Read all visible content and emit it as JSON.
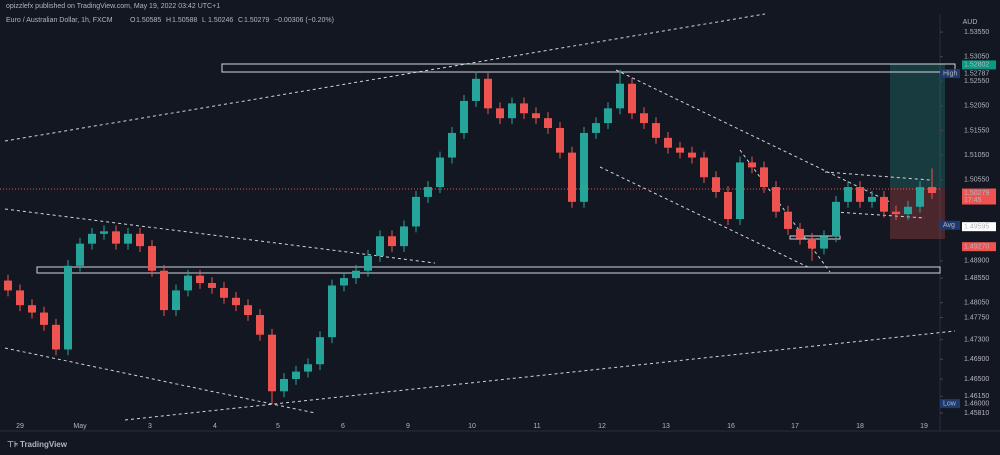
{
  "header": {
    "publisher": "opizzlefx published on TradingView.com, May 19, 2022 03:42 UTC+1",
    "brand": "TradingView"
  },
  "chart_data": {
    "type": "candlestick",
    "title": "Euro / Australian Dollar, 1h, FXCM",
    "readout": [
      {
        "key": "O",
        "value": 1.50585
      },
      {
        "key": "H",
        "value": 1.50588
      },
      {
        "key": "L",
        "value": 1.50246
      },
      {
        "key": "C",
        "value": 1.50279
      }
    ],
    "change": "−0.00306 (−0.20%)",
    "currency": "AUD",
    "up_color": "#26a69a",
    "down_color": "#ef5350",
    "ylim": [
      1.45443,
      1.53917
    ],
    "yticks": [
      {
        "value": 1.5355,
        "label": "1.53550"
      },
      {
        "value": 1.5305,
        "label": "1.53050"
      },
      {
        "value": 1.5255,
        "label": "1.52550"
      },
      {
        "value": 1.5205,
        "label": "1.52050"
      },
      {
        "value": 1.5155,
        "label": "1.51550"
      },
      {
        "value": 1.5105,
        "label": "1.51050"
      },
      {
        "value": 1.5055,
        "label": "1.50550"
      },
      {
        "value": 1.489,
        "label": "1.48900"
      },
      {
        "value": 1.4855,
        "label": "1.48550"
      },
      {
        "value": 1.4805,
        "label": "1.48050"
      },
      {
        "value": 1.4775,
        "label": "1.47750"
      },
      {
        "value": 1.473,
        "label": "1.47300"
      },
      {
        "value": 1.469,
        "label": "1.46900"
      },
      {
        "value": 1.465,
        "label": "1.46500"
      },
      {
        "value": 1.4615,
        "label": "1.46150"
      },
      {
        "value": 1.4581,
        "label": "1.45810"
      }
    ],
    "price_markers": [
      {
        "tag": "High",
        "value": 1.52787
      },
      {
        "value": 1.52802
      },
      {
        "value": 1.50279,
        "sub": "17:45"
      },
      {
        "tag": "Avg",
        "value": 1.49624
      },
      {
        "value": 1.49595
      },
      {
        "value": 1.4927,
        "label": "1.49270"
      },
      {
        "tag": "Low",
        "value": 1.46,
        "label": "1.46000"
      }
    ],
    "time_labels": [
      "29",
      "May",
      "3",
      "4",
      "5",
      "6",
      "9",
      "10",
      "11",
      "12",
      "13",
      "16",
      "17",
      "18",
      "19"
    ],
    "ohlc": [
      [
        1.485,
        1.4862,
        1.4818,
        1.483
      ],
      [
        1.483,
        1.4842,
        1.4788,
        1.48
      ],
      [
        1.48,
        1.4812,
        1.4773,
        1.4785
      ],
      [
        1.4785,
        1.4797,
        1.4748,
        1.476
      ],
      [
        1.476,
        1.4772,
        1.4698,
        1.471
      ],
      [
        1.471,
        1.4892,
        1.4698,
        1.488
      ],
      [
        1.488,
        1.4937,
        1.4868,
        1.4925
      ],
      [
        1.4925,
        1.4957,
        1.4913,
        1.4945
      ],
      [
        1.4945,
        1.4962,
        1.4933,
        1.495
      ],
      [
        1.495,
        1.4962,
        1.4913,
        1.4925
      ],
      [
        1.4925,
        1.4957,
        1.4913,
        1.4945
      ],
      [
        1.4945,
        1.4957,
        1.4908,
        1.492
      ],
      [
        1.492,
        1.4932,
        1.4858,
        1.487
      ],
      [
        1.487,
        1.4882,
        1.4778,
        1.479
      ],
      [
        1.479,
        1.4842,
        1.4778,
        1.483
      ],
      [
        1.483,
        1.4872,
        1.4818,
        1.486
      ],
      [
        1.486,
        1.4872,
        1.4833,
        1.4845
      ],
      [
        1.4845,
        1.4857,
        1.4823,
        1.4835
      ],
      [
        1.4835,
        1.4847,
        1.4803,
        1.4815
      ],
      [
        1.4815,
        1.4827,
        1.4788,
        1.48
      ],
      [
        1.48,
        1.4812,
        1.4768,
        1.478
      ],
      [
        1.478,
        1.4792,
        1.4728,
        1.474
      ],
      [
        1.474,
        1.4752,
        1.46,
        1.4625
      ],
      [
        1.4625,
        1.4662,
        1.4613,
        1.465
      ],
      [
        1.465,
        1.4677,
        1.4638,
        1.4665
      ],
      [
        1.4665,
        1.4692,
        1.4653,
        1.468
      ],
      [
        1.468,
        1.4747,
        1.4668,
        1.4735
      ],
      [
        1.4735,
        1.4852,
        1.4723,
        1.484
      ],
      [
        1.484,
        1.4867,
        1.4828,
        1.4855
      ],
      [
        1.4855,
        1.4882,
        1.4843,
        1.487
      ],
      [
        1.487,
        1.4912,
        1.4858,
        1.49
      ],
      [
        1.49,
        1.4952,
        1.4888,
        1.494
      ],
      [
        1.494,
        1.4952,
        1.4908,
        1.492
      ],
      [
        1.492,
        1.4972,
        1.4908,
        1.496
      ],
      [
        1.496,
        1.5032,
        1.4948,
        1.502
      ],
      [
        1.502,
        1.5052,
        1.5008,
        1.504
      ],
      [
        1.504,
        1.5112,
        1.5028,
        1.51
      ],
      [
        1.51,
        1.5162,
        1.5088,
        1.515
      ],
      [
        1.515,
        1.5227,
        1.5138,
        1.5215
      ],
      [
        1.5215,
        1.5275,
        1.5203,
        1.526
      ],
      [
        1.526,
        1.5272,
        1.5188,
        1.52
      ],
      [
        1.52,
        1.5212,
        1.5168,
        1.518
      ],
      [
        1.518,
        1.5222,
        1.5168,
        1.521
      ],
      [
        1.521,
        1.5222,
        1.5178,
        1.519
      ],
      [
        1.519,
        1.5202,
        1.5168,
        1.518
      ],
      [
        1.518,
        1.5192,
        1.5148,
        1.516
      ],
      [
        1.516,
        1.5172,
        1.5098,
        1.511
      ],
      [
        1.511,
        1.5122,
        1.4998,
        1.501
      ],
      [
        1.501,
        1.5162,
        1.4998,
        1.515
      ],
      [
        1.515,
        1.5182,
        1.5138,
        1.517
      ],
      [
        1.517,
        1.5212,
        1.5158,
        1.52
      ],
      [
        1.52,
        1.52787,
        1.5188,
        1.525
      ],
      [
        1.525,
        1.5262,
        1.5178,
        1.519
      ],
      [
        1.519,
        1.5202,
        1.5158,
        1.517
      ],
      [
        1.517,
        1.5182,
        1.5128,
        1.514
      ],
      [
        1.514,
        1.5152,
        1.5108,
        1.512
      ],
      [
        1.512,
        1.5132,
        1.5098,
        1.511
      ],
      [
        1.511,
        1.5122,
        1.5088,
        1.51
      ],
      [
        1.51,
        1.5112,
        1.5048,
        1.506
      ],
      [
        1.506,
        1.5072,
        1.5018,
        1.503
      ],
      [
        1.503,
        1.5042,
        1.4963,
        1.4975
      ],
      [
        1.4975,
        1.5102,
        1.4963,
        1.509
      ],
      [
        1.509,
        1.5102,
        1.5068,
        1.508
      ],
      [
        1.508,
        1.5092,
        1.5028,
        1.504
      ],
      [
        1.504,
        1.5052,
        1.4978,
        1.499
      ],
      [
        1.499,
        1.5002,
        1.4943,
        1.4955
      ],
      [
        1.4955,
        1.4967,
        1.4923,
        1.4935
      ],
      [
        1.4935,
        1.4947,
        1.489,
        1.4915
      ],
      [
        1.4915,
        1.4952,
        1.4903,
        1.494
      ],
      [
        1.494,
        1.5022,
        1.4928,
        1.501
      ],
      [
        1.501,
        1.5052,
        1.4998,
        1.504
      ],
      [
        1.504,
        1.5052,
        1.4998,
        1.501
      ],
      [
        1.501,
        1.5032,
        1.4998,
        1.502
      ],
      [
        1.502,
        1.5032,
        1.4978,
        1.499
      ],
      [
        1.499,
        1.5002,
        1.4973,
        1.4985
      ],
      [
        1.4985,
        1.5012,
        1.4973,
        1.5
      ],
      [
        1.5,
        1.5052,
        1.4988,
        1.504
      ],
      [
        1.504,
        1.5078,
        1.5016,
        1.50279
      ]
    ]
  }
}
